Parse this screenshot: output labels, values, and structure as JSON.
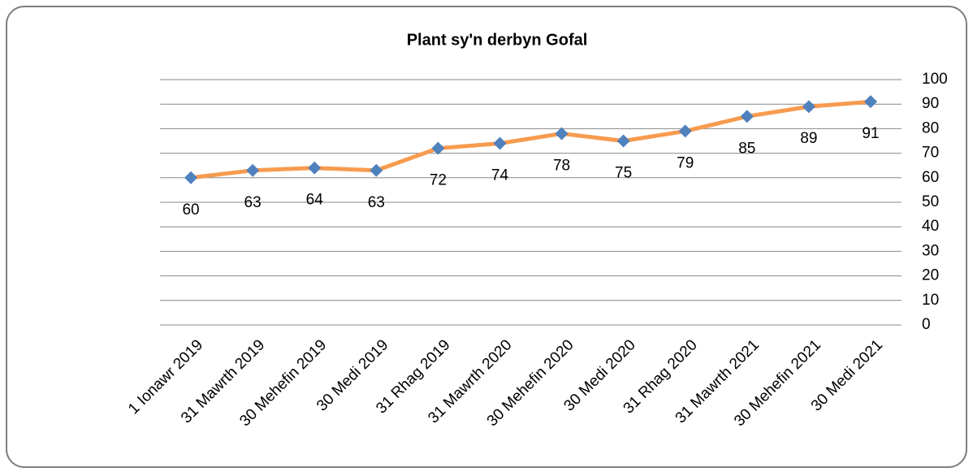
{
  "chart_data": {
    "type": "line",
    "title": "Plant sy'n derbyn Gofal",
    "categories": [
      "1 Ionawr 2019",
      "31 Mawrth 2019",
      "30 Mehefin 2019",
      "30 Medi 2019",
      "31 Rhag 2019",
      "31 Mawrth 2020",
      "30 Mehefin 2020",
      "30 Medi 2020",
      "31 Rhag 2020",
      "31 Mawrth 2021",
      "30 Mehefin 2021",
      "30 Medi 2021"
    ],
    "values": [
      60,
      63,
      64,
      63,
      72,
      74,
      78,
      75,
      79,
      85,
      89,
      91
    ],
    "color": "#f79b4f",
    "marker_color": "#4f81bd",
    "ylim": [
      0,
      100
    ],
    "yticks": [
      0,
      10,
      20,
      30,
      40,
      50,
      60,
      70,
      80,
      90,
      100
    ],
    "grid": true,
    "y_axis_side": "right",
    "data_labels": true
  }
}
